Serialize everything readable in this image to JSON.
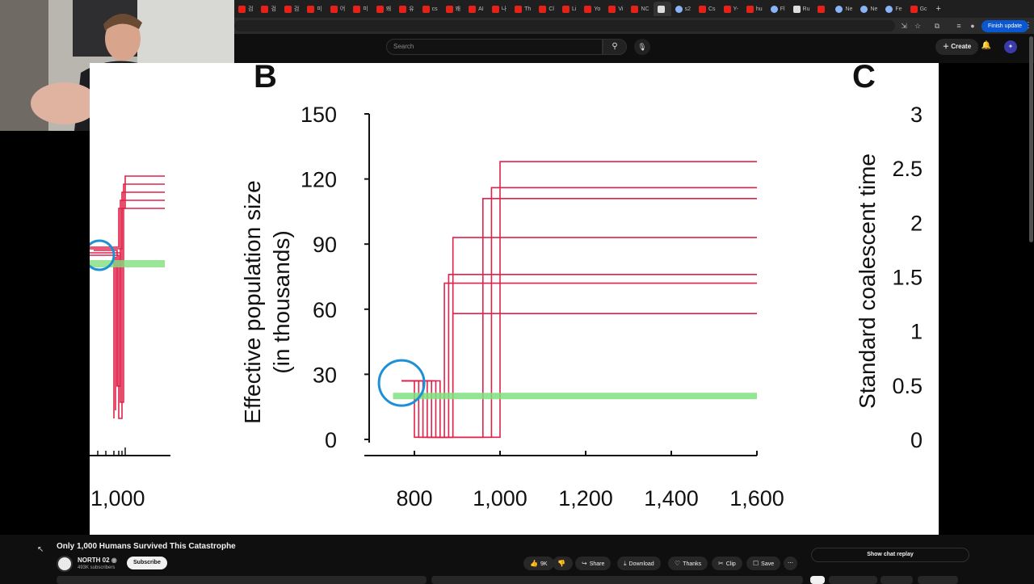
{
  "browser": {
    "tabs": [
      {
        "label": "검",
        "icon": "youtube-icon"
      },
      {
        "label": "검",
        "icon": "youtube-icon"
      },
      {
        "label": "검",
        "icon": "youtube-icon"
      },
      {
        "label": "미",
        "icon": "youtube-icon"
      },
      {
        "label": "어",
        "icon": "youtube-icon"
      },
      {
        "label": "미",
        "icon": "youtube-icon"
      },
      {
        "label": "왜",
        "icon": "youtube-icon"
      },
      {
        "label": "유",
        "icon": "youtube-icon"
      },
      {
        "label": "cs",
        "icon": "youtube-icon"
      },
      {
        "label": "왜",
        "icon": "youtube-icon"
      },
      {
        "label": "AI",
        "icon": "youtube-icon"
      },
      {
        "label": "나",
        "icon": "youtube-icon"
      },
      {
        "label": "Th",
        "icon": "youtube-icon"
      },
      {
        "label": "Cl",
        "icon": "youtube-icon"
      },
      {
        "label": "Li",
        "icon": "youtube-icon"
      },
      {
        "label": "Yo",
        "icon": "youtube-icon"
      },
      {
        "label": "Vi",
        "icon": "youtube-icon"
      },
      {
        "label": "NC",
        "icon": "youtube-icon"
      },
      {
        "label": "",
        "icon": "audio-icon",
        "active": true
      },
      {
        "label": "s2",
        "icon": "globe-icon"
      },
      {
        "label": "Cs",
        "icon": "youtube-icon"
      },
      {
        "label": "Y-",
        "icon": "youtube-icon"
      },
      {
        "label": "hu",
        "icon": "youtube-icon"
      },
      {
        "label": "Fl",
        "icon": "globe-icon"
      },
      {
        "label": "Ru",
        "icon": "doc-icon"
      },
      {
        "label": "",
        "icon": "tiktok-icon"
      },
      {
        "label": "Ne",
        "icon": "globe-icon"
      },
      {
        "label": "Ne",
        "icon": "globe-icon"
      },
      {
        "label": "Fe",
        "icon": "globe-icon"
      },
      {
        "label": "Gc",
        "icon": "maps-icon"
      }
    ],
    "finish_update": "Finish update"
  },
  "header": {
    "search_placeholder": "Search",
    "create_label": "Create"
  },
  "video": {
    "panel_b_letter": "B",
    "panel_c_letter": "C",
    "left_axis_title_line1": "Effective population size",
    "left_axis_title_line2": "(in thousands)",
    "right_axis_title": "Standard coalescent time",
    "left_partial_tick": "1,000"
  },
  "chart_data": {
    "type": "line",
    "title": "",
    "xlabel": "",
    "ylabel": "Effective population size (in thousands)",
    "ylabel_right": "Standard coalescent time",
    "xlim": [
      750,
      1600
    ],
    "ylim": [
      0,
      150
    ],
    "x_ticks": [
      "800",
      "1,000",
      "1,200",
      "1,400",
      "1,600"
    ],
    "y_ticks": [
      "0",
      "30",
      "60",
      "90",
      "120",
      "150"
    ],
    "y_ticks_right": [
      "0",
      "0.5",
      "1",
      "1.5",
      "2",
      "2.5",
      "3"
    ],
    "series": [
      {
        "color": "#e0224a",
        "values": [
          [
            770,
            27
          ],
          [
            800,
            27
          ],
          [
            800,
            1
          ],
          [
            1000,
            1
          ],
          [
            1000,
            128
          ],
          [
            1600,
            128
          ]
        ]
      },
      {
        "color": "#e0224a",
        "values": [
          [
            770,
            27
          ],
          [
            810,
            27
          ],
          [
            810,
            1
          ],
          [
            980,
            1
          ],
          [
            980,
            116
          ],
          [
            1600,
            116
          ]
        ]
      },
      {
        "color": "#e0224a",
        "values": [
          [
            770,
            27
          ],
          [
            820,
            27
          ],
          [
            820,
            1
          ],
          [
            960,
            1
          ],
          [
            960,
            111
          ],
          [
            1600,
            111
          ]
        ]
      },
      {
        "color": "#e0224a",
        "values": [
          [
            770,
            27
          ],
          [
            830,
            27
          ],
          [
            830,
            1
          ],
          [
            890,
            1
          ],
          [
            890,
            93
          ],
          [
            1600,
            93
          ]
        ]
      },
      {
        "color": "#e0224a",
        "values": [
          [
            770,
            27
          ],
          [
            840,
            27
          ],
          [
            840,
            1
          ],
          [
            880,
            1
          ],
          [
            880,
            76
          ],
          [
            1600,
            76
          ]
        ]
      },
      {
        "color": "#e0224a",
        "values": [
          [
            770,
            27
          ],
          [
            850,
            27
          ],
          [
            850,
            1
          ],
          [
            870,
            1
          ],
          [
            870,
            72
          ],
          [
            1600,
            72
          ]
        ]
      },
      {
        "color": "#e0224a",
        "values": [
          [
            770,
            27
          ],
          [
            860,
            27
          ],
          [
            860,
            1
          ],
          [
            890,
            1
          ],
          [
            890,
            58
          ],
          [
            1600,
            58
          ]
        ]
      },
      {
        "color": "#7fe07f",
        "values": [
          [
            750,
            20
          ],
          [
            1600,
            20
          ]
        ]
      }
    ],
    "annotations": [
      {
        "shape": "circle",
        "color": "#1e90d6",
        "x": 770,
        "y": 26
      }
    ]
  },
  "below": {
    "title": "Only 1,000 Humans Survived This Catastrophe",
    "channel_name": "NORTH 02",
    "subscribers": "493K subscribers",
    "subscribe_label": "Subscribe",
    "like_count": "9K",
    "share_label": "Share",
    "download_label": "Download",
    "thanks_label": "Thanks",
    "clip_label": "Clip",
    "save_label": "Save",
    "chat_replay_label": "Show chat replay"
  }
}
